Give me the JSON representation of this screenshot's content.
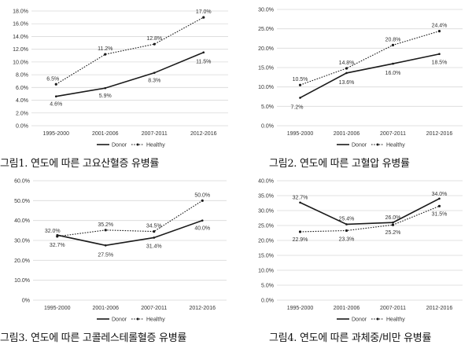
{
  "legend": {
    "donor": "Donor",
    "healthy": "Healthy"
  },
  "colors": {
    "donor": "#1a1a1a",
    "healthy": "#1a1a1a",
    "grid": "#d9d9d9"
  },
  "chart_data": [
    {
      "type": "line",
      "caption": "그림1. 연도에 따른 고요산혈증 유병률",
      "categories": [
        "1995-2000",
        "2001-2006",
        "2007-2011",
        "2012-2016"
      ],
      "ylim": [
        0,
        18
      ],
      "yticks": [
        "0.0%",
        "2.0%",
        "4.0%",
        "6.0%",
        "8.0%",
        "10.0%",
        "12.0%",
        "14.0%",
        "16.0%",
        "18.0%"
      ],
      "ystep": 2,
      "series": [
        {
          "name": "Donor",
          "values": [
            4.6,
            5.9,
            8.3,
            11.5
          ],
          "labels": [
            "4.6%",
            "5.9%",
            "8.3%",
            "11.5%"
          ]
        },
        {
          "name": "Healthy",
          "values": [
            6.5,
            11.2,
            12.8,
            17.0
          ],
          "labels": [
            "6.5%",
            "11.2%",
            "12.8%",
            "17.0%"
          ]
        }
      ]
    },
    {
      "type": "line",
      "caption": "그림2. 연도에 따른 고혈압 유병률",
      "categories": [
        "1995-2000",
        "2001-2006",
        "2007-2011",
        "2012-2016"
      ],
      "ylim": [
        0,
        30
      ],
      "yticks": [
        "0.0%",
        "5.0%",
        "10.0%",
        "15.0%",
        "20.0%",
        "25.0%",
        "30.0%"
      ],
      "ystep": 5,
      "series": [
        {
          "name": "Donor",
          "values": [
            7.2,
            13.6,
            16.0,
            18.5
          ],
          "labels": [
            "7.2%",
            "13.6%",
            "16.0%",
            "18.5%"
          ]
        },
        {
          "name": "Healthy",
          "values": [
            10.5,
            14.8,
            20.8,
            24.4
          ],
          "labels": [
            "10.5%",
            "14.8%",
            "20.8%",
            "24.4%"
          ]
        }
      ]
    },
    {
      "type": "line",
      "caption": "그림3. 연도에 따른 고콜레스테롤혈증 유병률",
      "categories": [
        "1995-2000",
        "2001-2006",
        "2007-2011",
        "2012-2016"
      ],
      "ylim": [
        0,
        60
      ],
      "yticks": [
        "0%",
        "10.0%",
        "20.0%",
        "30.0%",
        "40.0%",
        "50.0%",
        "60.0%"
      ],
      "ystep": 10,
      "series": [
        {
          "name": "Donor",
          "values": [
            32.7,
            27.5,
            31.4,
            40.0
          ],
          "labels": [
            "32.7%",
            "27.5%",
            "31.4%",
            "40.0%"
          ]
        },
        {
          "name": "Healthy",
          "values": [
            32.0,
            35.2,
            34.5,
            50.0
          ],
          "labels": [
            "32.0%",
            "35.2%",
            "34.5%",
            "50.0%"
          ]
        }
      ]
    },
    {
      "type": "line",
      "caption": "그림4. 연도에 따른 과체중/비만 유병률",
      "categories": [
        "1995-2000",
        "2001-2006",
        "2007-2011",
        "2012-2016"
      ],
      "ylim": [
        0,
        40
      ],
      "yticks": [
        "0.0%",
        "5.0%",
        "10.0%",
        "15.0%",
        "20.0%",
        "25.0%",
        "30.0%",
        "35.0%",
        "40.0%"
      ],
      "ystep": 5,
      "series": [
        {
          "name": "Donor",
          "values": [
            32.7,
            25.4,
            26.0,
            34.0
          ],
          "labels": [
            "32.7%",
            "25.4%",
            "26.0%",
            "34.0%"
          ]
        },
        {
          "name": "Healthy",
          "values": [
            22.9,
            23.3,
            25.2,
            31.5
          ],
          "labels": [
            "22.9%",
            "23.3%",
            "25.2%",
            "31.5%"
          ]
        }
      ]
    }
  ]
}
